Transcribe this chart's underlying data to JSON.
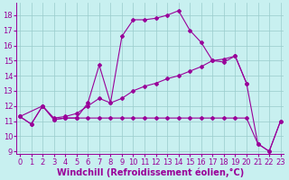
{
  "xlabel": "Windchill (Refroidissement éolien,°C)",
  "background_color": "#c8f0f0",
  "grid_color": "#99cccc",
  "line_color": "#990099",
  "yticks": [
    9,
    10,
    11,
    12,
    13,
    14,
    15,
    16,
    17,
    18
  ],
  "xticks": [
    0,
    1,
    2,
    3,
    4,
    5,
    6,
    7,
    8,
    9,
    10,
    11,
    12,
    13,
    14,
    15,
    16,
    17,
    18,
    19,
    20,
    21,
    22,
    23
  ],
  "line1_x": [
    0,
    1,
    2,
    3,
    4,
    5,
    6,
    7,
    8,
    9,
    10,
    11,
    12,
    13,
    14,
    15,
    16,
    17,
    18,
    19,
    20,
    21,
    22,
    23
  ],
  "line1_y": [
    11.3,
    10.8,
    12.0,
    11.1,
    11.2,
    11.2,
    11.2,
    11.2,
    11.2,
    11.2,
    11.2,
    11.2,
    11.2,
    11.2,
    11.2,
    11.2,
    11.2,
    11.2,
    11.2,
    11.2,
    11.2,
    9.5,
    9.0,
    11.0
  ],
  "line2_x": [
    0,
    2,
    3,
    4,
    5,
    6,
    7,
    8,
    9,
    10,
    11,
    12,
    13,
    14,
    15,
    16,
    17,
    18,
    19,
    20
  ],
  "line2_y": [
    11.3,
    12.0,
    11.2,
    11.3,
    11.5,
    12.0,
    12.5,
    12.2,
    12.5,
    13.0,
    13.3,
    13.5,
    13.8,
    14.0,
    14.3,
    14.6,
    15.0,
    15.1,
    15.3,
    13.5
  ],
  "line3_x": [
    0,
    1,
    2,
    3,
    4,
    5,
    6,
    7,
    8,
    9,
    10,
    11,
    12,
    13,
    14,
    15,
    16,
    17,
    18,
    19,
    20,
    21,
    22,
    23
  ],
  "line3_y": [
    11.3,
    10.8,
    12.0,
    11.1,
    11.2,
    11.2,
    12.2,
    14.7,
    12.2,
    16.6,
    17.7,
    17.7,
    17.8,
    18.0,
    18.3,
    17.0,
    16.2,
    15.0,
    14.9,
    15.3,
    13.5,
    9.5,
    9.0,
    11.0
  ],
  "tick_fontsize": 6,
  "label_fontsize": 7
}
